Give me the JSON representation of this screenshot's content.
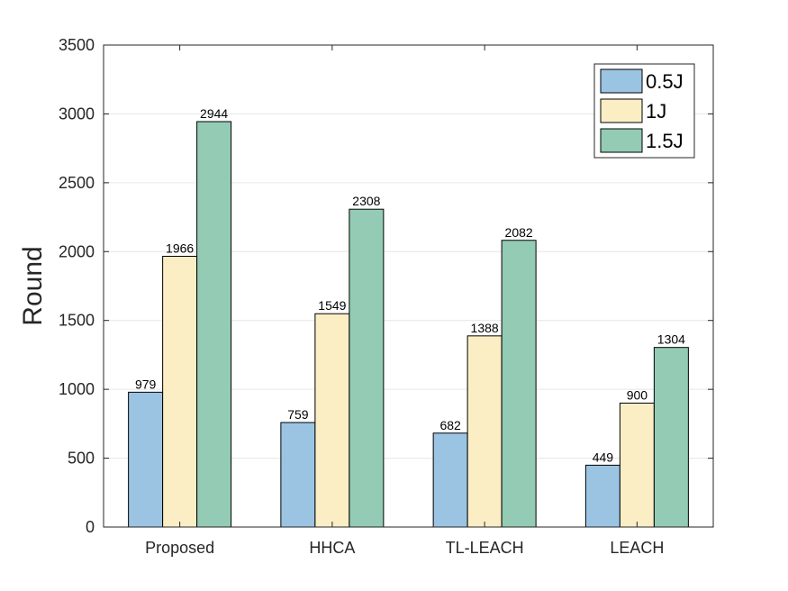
{
  "chart_data": {
    "type": "bar",
    "title": "",
    "xlabel": "",
    "ylabel": "Round",
    "ylim": [
      0,
      3500
    ],
    "yticks": [
      0,
      500,
      1000,
      1500,
      2000,
      2500,
      3000,
      3500
    ],
    "grid": true,
    "legend_position": "top-right",
    "categories": [
      "Proposed",
      "HHCA",
      "TL-LEACH",
      "LEACH"
    ],
    "series": [
      {
        "name": "0.5J",
        "color": "#9bc4e3",
        "values": [
          979,
          759,
          682,
          449
        ]
      },
      {
        "name": "1J",
        "color": "#fbeec4",
        "values": [
          1966,
          1549,
          1388,
          900
        ]
      },
      {
        "name": "1.5J",
        "color": "#93cbb4",
        "values": [
          2944,
          2308,
          2082,
          1304
        ]
      }
    ]
  }
}
